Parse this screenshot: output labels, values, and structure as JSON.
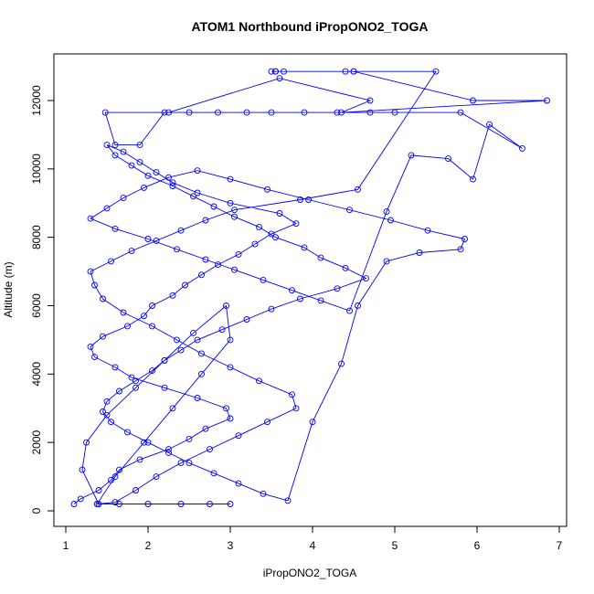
{
  "chart_data": {
    "type": "line",
    "title": "ATOM1 Northbound iPropONO2_TOGA",
    "xlabel": "iPropONO2_TOGA",
    "ylabel": "Altitude (m)",
    "xlim": [
      1,
      7
    ],
    "ylim": [
      0,
      12000
    ],
    "x_ticks": [
      "1",
      "2",
      "3",
      "4",
      "5",
      "6",
      "7"
    ],
    "y_ticks": [
      "0",
      "2000",
      "4000",
      "6000",
      "8000",
      "10000",
      "12000"
    ],
    "grid": false,
    "legend": "none",
    "color": "#0000ff",
    "marker": "open-circle",
    "series": [
      {
        "x": [
          1.1,
          1.18,
          1.4,
          1.55,
          1.65,
          1.9,
          2.25,
          2.5,
          2.7,
          3.0,
          2.95,
          2.6,
          2.2,
          1.8,
          1.6,
          1.35,
          1.3,
          1.45,
          1.75,
          1.95,
          2.05,
          2.3,
          2.45,
          2.65,
          2.85,
          3.1,
          3.3,
          3.5,
          3.8,
          3.6,
          3.0,
          2.6,
          2.3,
          2.1,
          1.9,
          1.7,
          1.5,
          1.6,
          1.8,
          2.0,
          2.3,
          2.55,
          2.8,
          3.05,
          3.35,
          3.55,
          3.9,
          4.1,
          4.4,
          4.65,
          4.3,
          3.85,
          3.5,
          3.2,
          2.9,
          2.6,
          2.4,
          2.2,
          2.05,
          1.85,
          1.65,
          1.5,
          1.45,
          1.55,
          1.75,
          2.0,
          2.25,
          2.5,
          2.8,
          3.1,
          3.4,
          3.7,
          4.0,
          4.35,
          4.55,
          4.9,
          5.3,
          5.8,
          5.85,
          5.4,
          4.95,
          4.45,
          3.95,
          3.45,
          3.0,
          2.6,
          2.25,
          1.95,
          1.7,
          1.5,
          1.3,
          1.6,
          2.0,
          2.35,
          2.7,
          3.05,
          3.4,
          3.75,
          4.1,
          4.45,
          4.9,
          5.2,
          5.65,
          5.95,
          6.15,
          6.55,
          5.8,
          5.0,
          4.7,
          4.3,
          3.9,
          3.5,
          3.2,
          2.85,
          2.5,
          2.2,
          1.9,
          1.6,
          1.48,
          2.25,
          3.6,
          4.7,
          4.35,
          6.85,
          5.95,
          4.5,
          3.55,
          3.55,
          4.5,
          3.5,
          3.65,
          4.4,
          5.5,
          4.55,
          3.85,
          3.05,
          2.7,
          2.4,
          2.1,
          1.8,
          1.55,
          1.3,
          1.35,
          1.45,
          1.7,
          2.05,
          2.35,
          2.65,
          3.0,
          3.35,
          3.75,
          3.8,
          3.45,
          3.1,
          2.75,
          2.4,
          2.1,
          1.85,
          1.6,
          1.4,
          1.2,
          1.25,
          1.5,
          1.85,
          2.2,
          2.55,
          2.95,
          3.0,
          2.65,
          2.3,
          1.95,
          1.6,
          1.38,
          1.65,
          2.0,
          2.4,
          2.75,
          3.0
        ],
        "y": [
          200,
          350,
          600,
          900,
          1200,
          1500,
          1800,
          2100,
          2400,
          2700,
          3000,
          3300,
          3600,
          3900,
          4200,
          4500,
          4800,
          5100,
          5400,
          5700,
          6000,
          6300,
          6600,
          6900,
          7200,
          7500,
          7800,
          8100,
          8400,
          8700,
          9000,
          9300,
          9600,
          9900,
          10200,
          10500,
          10700,
          10400,
          10100,
          9800,
          9500,
          9200,
          8900,
          8600,
          8300,
          8000,
          7700,
          7400,
          7100,
          6800,
          6500,
          6200,
          5900,
          5600,
          5300,
          5000,
          4700,
          4400,
          4100,
          3800,
          3500,
          3200,
          2900,
          2600,
          2300,
          2000,
          1700,
          1400,
          1100,
          800,
          500,
          300,
          2600,
          4300,
          6000,
          7300,
          7550,
          7650,
          7950,
          8200,
          8500,
          8800,
          9100,
          9400,
          9700,
          9950,
          9750,
          9450,
          9150,
          8850,
          8550,
          8250,
          7950,
          7650,
          7350,
          7050,
          6750,
          6450,
          6150,
          5850,
          8750,
          10400,
          10300,
          9700,
          11300,
          10600,
          11650,
          11650,
          11650,
          11650,
          11650,
          11650,
          11650,
          11650,
          11650,
          11650,
          10700,
          10700,
          11650,
          11650,
          12650,
          12000,
          11650,
          12000,
          12000,
          12850,
          12850,
          12850,
          12850,
          12850,
          12850,
          12850,
          12850,
          9400,
          9100,
          8800,
          8500,
          8200,
          7900,
          7600,
          7300,
          7000,
          6600,
          6200,
          5800,
          5400,
          5000,
          4600,
          4200,
          3800,
          3400,
          3000,
          2600,
          2200,
          1800,
          1400,
          1000,
          600,
          250,
          200,
          1200,
          2000,
          2800,
          3600,
          4400,
          5200,
          6000,
          5000,
          4000,
          3000,
          2000,
          1000,
          200,
          200,
          200,
          200,
          200,
          200
        ]
      }
    ]
  }
}
